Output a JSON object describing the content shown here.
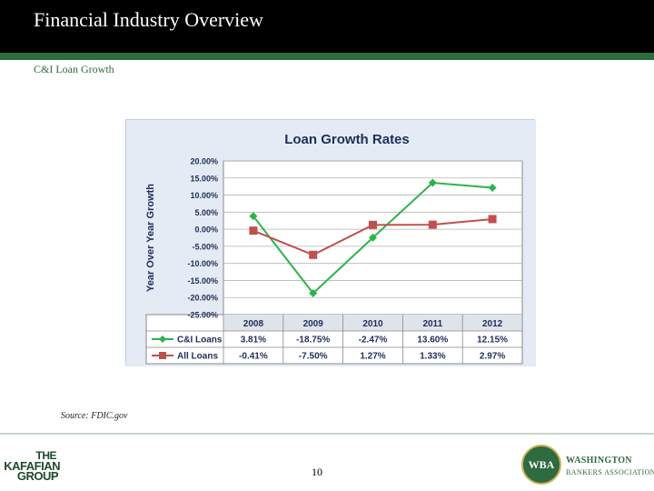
{
  "slide": {
    "title": "Financial Industry Overview",
    "subtitle": "C&I Loan Growth",
    "source": "Source: FDIC.gov",
    "page_number": "10"
  },
  "logos": {
    "left": {
      "lines": [
        "THE",
        "KAFAFIAN",
        "GROUP"
      ]
    },
    "right": {
      "seal": "WBA",
      "name_line1": "WASHINGTON",
      "name_line2": "BANKERS ASSOCIATION"
    }
  },
  "colors": {
    "title_bar": "#000000",
    "accent": "#2e6b3e",
    "ci_series": "#2db34a",
    "all_series": "#c0504d"
  },
  "chart_data": {
    "type": "line",
    "title": "Loan Growth Rates",
    "ylabel": "Year Over Year Growth",
    "xlabel": "",
    "categories": [
      "2008",
      "2009",
      "2010",
      "2011",
      "2012"
    ],
    "series": [
      {
        "name": "C&I Loans",
        "values": [
          3.81,
          -18.75,
          -2.47,
          13.6,
          12.15
        ],
        "labels": [
          "3.81%",
          "-18.75%",
          "-2.47%",
          "13.60%",
          "12.15%"
        ],
        "color": "#2db34a",
        "marker": "diamond"
      },
      {
        "name": "All Loans",
        "values": [
          -0.41,
          -7.5,
          1.27,
          1.33,
          2.97
        ],
        "labels": [
          "-0.41%",
          "-7.50%",
          "1.27%",
          "1.33%",
          "2.97%"
        ],
        "color": "#c0504d",
        "marker": "square"
      }
    ],
    "ylim": [
      -25,
      20
    ],
    "yticks": [
      20,
      15,
      10,
      5,
      0,
      -5,
      -10,
      -15,
      -20,
      -25
    ],
    "ytick_labels": [
      "20.00%",
      "15.00%",
      "10.00%",
      "5.00%",
      "0.00%",
      "-5.00%",
      "-10.00%",
      "-15.00%",
      "-20.00%",
      "-25.00%"
    ],
    "grid": true,
    "legend": "data-table-below"
  }
}
